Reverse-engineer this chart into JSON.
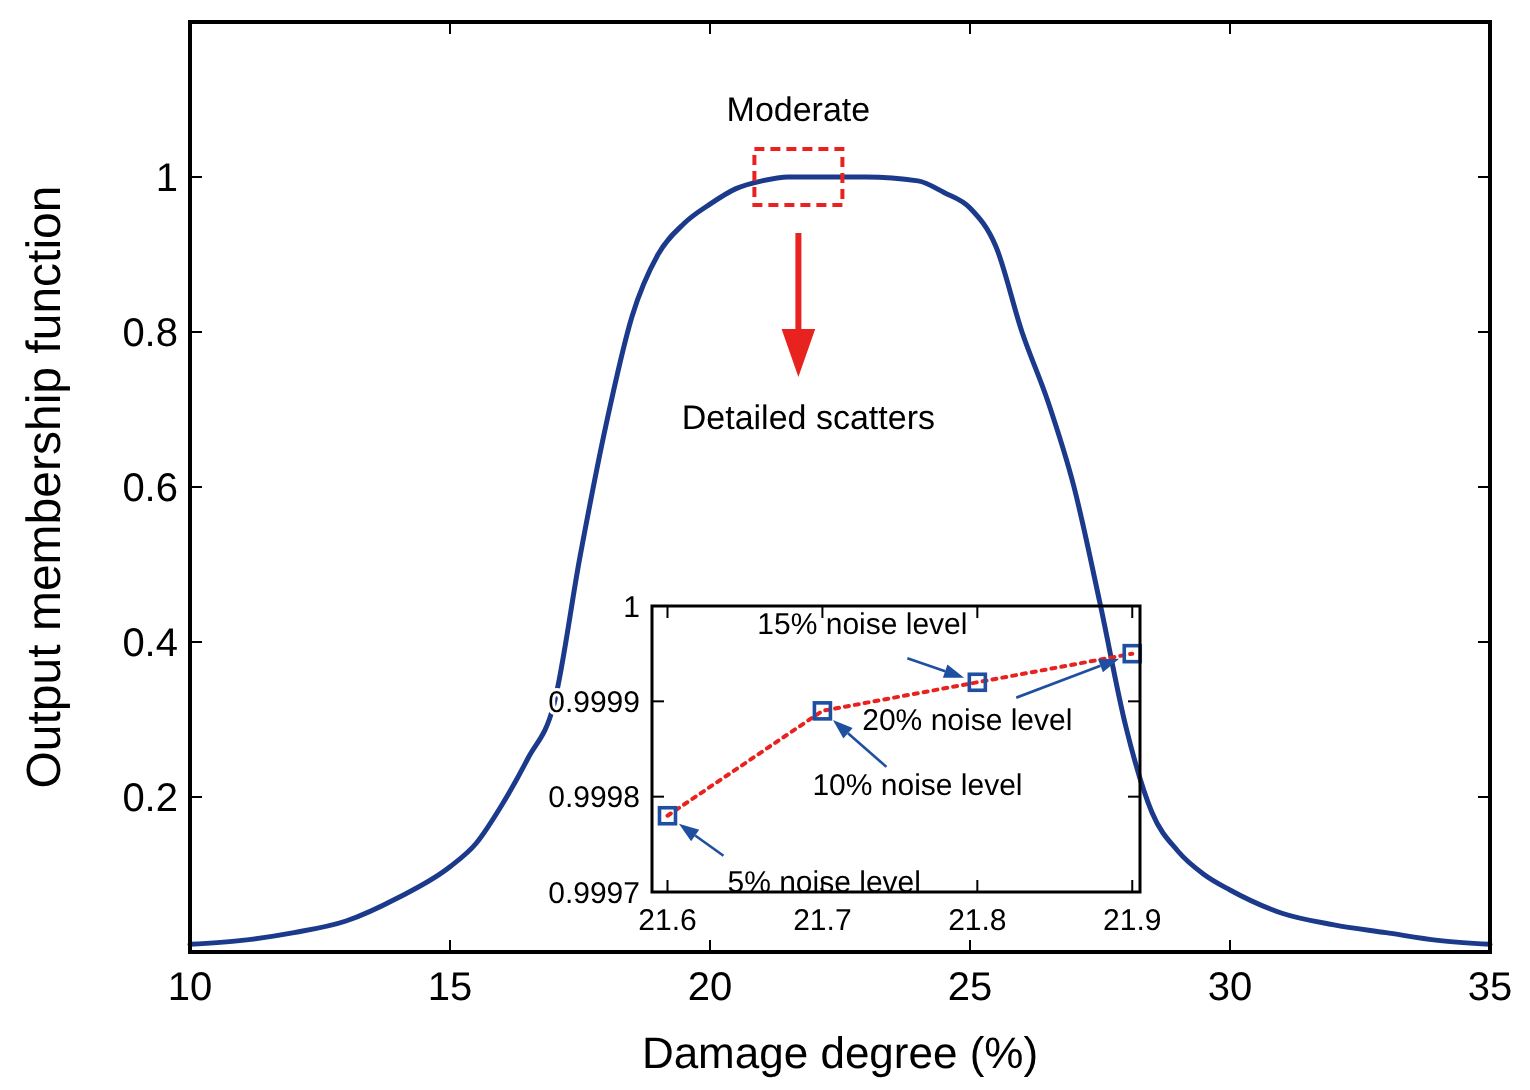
{
  "chart_data": [
    {
      "type": "line",
      "xlabel": "Damage degree (%)",
      "ylabel": "Output membership  function",
      "xlim": [
        10,
        35
      ],
      "xticks": [
        10,
        15,
        20,
        25,
        30,
        35
      ],
      "ylim": [
        0,
        1.2
      ],
      "yticks": [
        0.2,
        0.4,
        0.6,
        0.8,
        1
      ],
      "grid": false,
      "marker": "none",
      "line_style": "solid",
      "series": [
        {
          "color": "#1b3a8c",
          "x": [
            10,
            11,
            12,
            13,
            14,
            15,
            15.5,
            16,
            16.5,
            17,
            17.5,
            18,
            18.5,
            19,
            19.5,
            20,
            20.5,
            21,
            21.5,
            22,
            23,
            24,
            24.5,
            25,
            25.5,
            26,
            26.5,
            27,
            27.5,
            28,
            28.5,
            29,
            29.5,
            30,
            31,
            32,
            33,
            34,
            35
          ],
          "values": [
            0.01,
            0.015,
            0.025,
            0.04,
            0.07,
            0.11,
            0.14,
            0.19,
            0.25,
            0.32,
            0.51,
            0.68,
            0.82,
            0.9,
            0.94,
            0.965,
            0.985,
            0.995,
            1,
            1,
            1,
            0.995,
            0.98,
            0.96,
            0.91,
            0.8,
            0.71,
            0.6,
            0.45,
            0.29,
            0.18,
            0.13,
            0.1,
            0.08,
            0.05,
            0.035,
            0.025,
            0.015,
            0.01
          ]
        }
      ],
      "annotations": [
        {
          "text": "Moderate",
          "x": 21.7,
          "y": 1
        },
        "Detailed scatters"
      ]
    },
    {
      "type": "line",
      "xlim": [
        21.59,
        21.905
      ],
      "xticks": [
        21.6,
        21.7,
        21.8,
        21.9
      ],
      "ylim": [
        0.9997,
        1
      ],
      "yticks": [
        0.9997,
        0.9998,
        0.9999,
        1
      ],
      "grid": false,
      "series": [
        {
          "color": "#e8231f",
          "marker": "none",
          "line_style": "dotted",
          "x": [
            21.6,
            21.7,
            21.8,
            21.9
          ],
          "values": [
            0.99978,
            0.99989,
            0.99992,
            0.99995
          ]
        },
        {
          "type": "scatter",
          "color": "#1f4fa0",
          "marker": "square",
          "x": [
            21.6,
            21.7,
            21.8,
            21.9
          ],
          "values": [
            0.99978,
            0.99989,
            0.99992,
            0.99995
          ]
        }
      ],
      "annotations": [
        {
          "text": "5% noise level",
          "x": 21.6,
          "y": 0.99978
        },
        {
          "text": "10% noise level",
          "x": 21.7,
          "y": 0.99989
        },
        {
          "text": "15% noise level",
          "x": 21.8,
          "y": 0.99992
        },
        {
          "text": "20% noise level",
          "x": 21.9,
          "y": 0.99995
        }
      ]
    }
  ]
}
